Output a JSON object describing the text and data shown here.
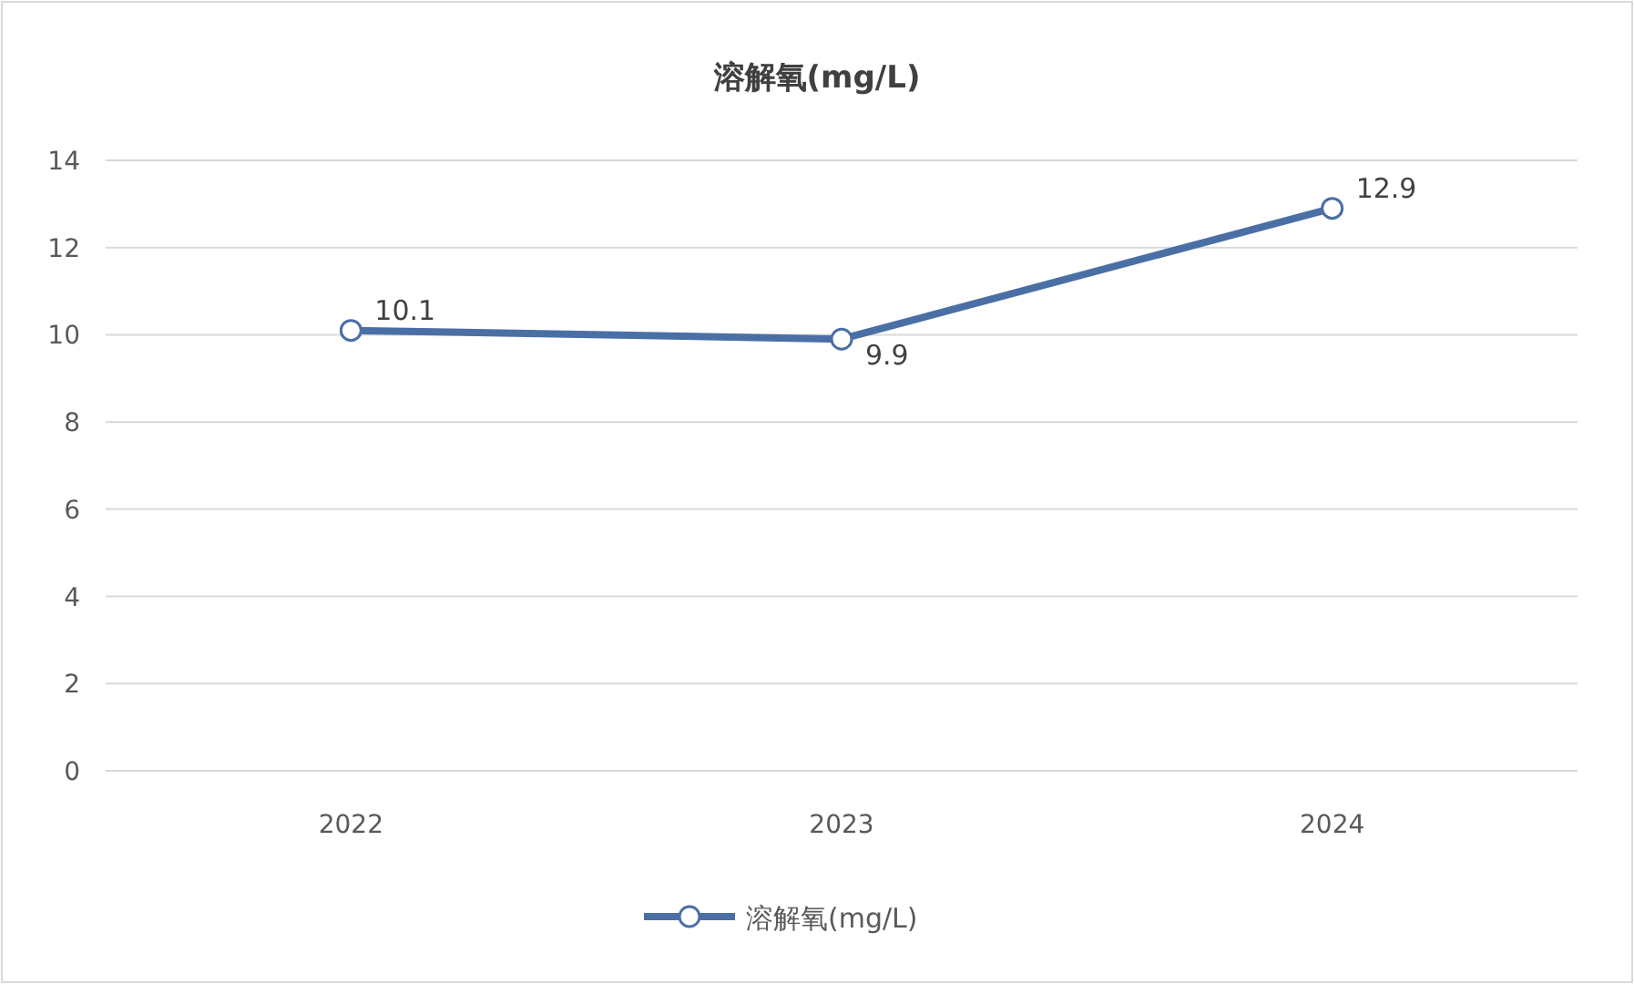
{
  "chart_data": {
    "type": "line",
    "title": "溶解氧(mg/L)",
    "categories": [
      "2022",
      "2023",
      "2024"
    ],
    "series": [
      {
        "name": "溶解氧(mg/L)",
        "color": "#4a6fa5",
        "values": [
          10.1,
          9.9,
          12.9
        ]
      }
    ],
    "ylim": [
      0,
      14
    ],
    "yticks": [
      0,
      2,
      4,
      6,
      8,
      10,
      12,
      14
    ],
    "grid": "y",
    "legend": "bottom",
    "marker": "circle",
    "line_style": "solid",
    "data_labels": true
  }
}
